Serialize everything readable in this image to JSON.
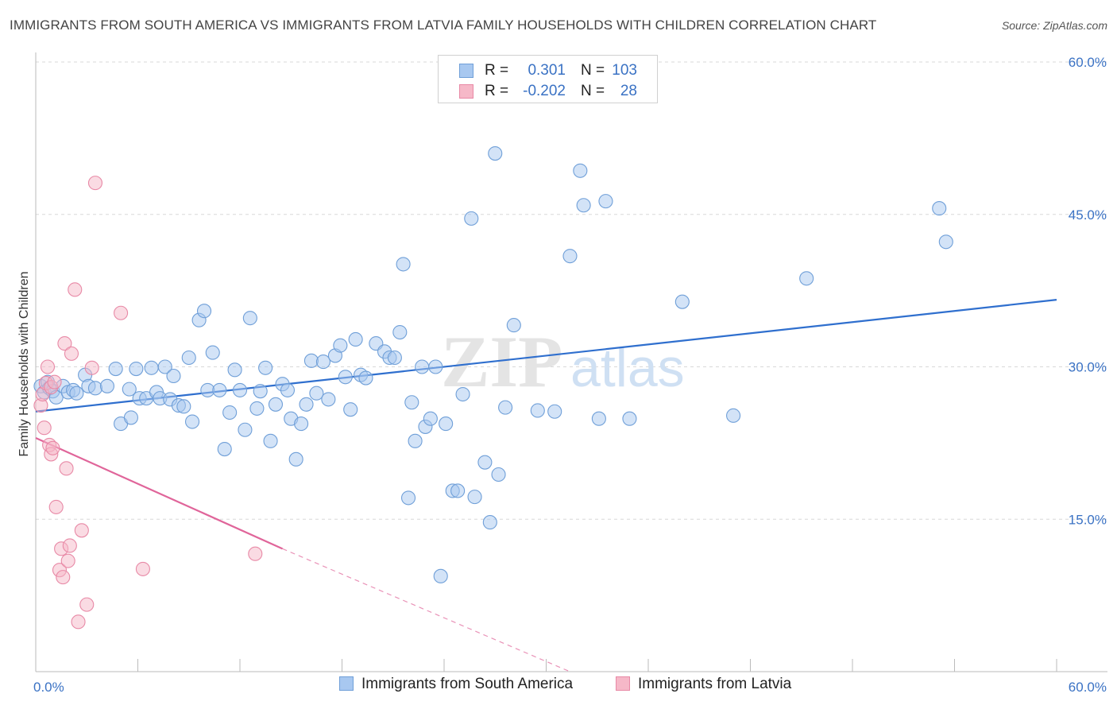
{
  "title": "IMMIGRANTS FROM SOUTH AMERICA VS IMMIGRANTS FROM LATVIA FAMILY HOUSEHOLDS WITH CHILDREN CORRELATION CHART",
  "source": "Source: ZipAtlas.com",
  "watermark": {
    "zip": "ZIP",
    "atlas": "atlas"
  },
  "legend": {
    "rows": [
      {
        "r_label": "R =",
        "r_value": "0.301",
        "n_label": "N =",
        "n_value": "103"
      },
      {
        "r_label": "R =",
        "r_value": "-0.202",
        "n_label": "N =",
        "n_value": "28"
      }
    ]
  },
  "colors": {
    "blue_fill": "#a8c8f0",
    "blue_stroke": "#6f9fd8",
    "blue_line": "#2f6fce",
    "pink_fill": "#f6b8c8",
    "pink_stroke": "#e889a6",
    "pink_line": "#e0659a",
    "tick_text": "#3a72c4",
    "grid": "#d8d8d8"
  },
  "chart_data": {
    "type": "scatter",
    "title": "IMMIGRANTS FROM SOUTH AMERICA VS IMMIGRANTS FROM LATVIA FAMILY HOUSEHOLDS WITH CHILDREN CORRELATION CHART",
    "xlabel": "",
    "ylabel": "Family Households with Children",
    "xlim": [
      0,
      60
    ],
    "ylim": [
      0,
      60
    ],
    "x_tick_labels": [
      "0.0%",
      "60.0%"
    ],
    "y_ticks": [
      15,
      30,
      45,
      60
    ],
    "y_tick_labels": [
      "15.0%",
      "30.0%",
      "45.0%",
      "60.0%"
    ],
    "grid": true,
    "legend_position": "top-center",
    "series": [
      {
        "name": "Immigrants from South America",
        "color": "#a8c8f0",
        "trend": {
          "x": [
            0,
            60
          ],
          "y": [
            25.6,
            36.6
          ]
        },
        "points": [
          [
            0.3,
            28.1
          ],
          [
            0.5,
            27.5
          ],
          [
            0.7,
            28.5
          ],
          [
            0.8,
            27.9
          ],
          [
            1.0,
            27.6
          ],
          [
            1.2,
            27.0
          ],
          [
            1.6,
            28.1
          ],
          [
            1.9,
            27.5
          ],
          [
            2.2,
            27.7
          ],
          [
            2.4,
            27.4
          ],
          [
            2.9,
            29.2
          ],
          [
            3.1,
            28.1
          ],
          [
            3.5,
            27.9
          ],
          [
            4.2,
            28.1
          ],
          [
            4.7,
            29.8
          ],
          [
            5.0,
            24.4
          ],
          [
            5.5,
            27.8
          ],
          [
            5.6,
            25.0
          ],
          [
            5.9,
            29.8
          ],
          [
            6.1,
            26.9
          ],
          [
            6.5,
            26.9
          ],
          [
            6.8,
            29.9
          ],
          [
            7.1,
            27.5
          ],
          [
            7.3,
            26.9
          ],
          [
            7.6,
            30.0
          ],
          [
            7.9,
            26.8
          ],
          [
            8.1,
            29.1
          ],
          [
            8.4,
            26.2
          ],
          [
            8.7,
            26.1
          ],
          [
            9.0,
            30.9
          ],
          [
            9.2,
            24.6
          ],
          [
            9.6,
            34.6
          ],
          [
            9.9,
            35.5
          ],
          [
            10.1,
            27.7
          ],
          [
            10.4,
            31.4
          ],
          [
            10.8,
            27.7
          ],
          [
            11.1,
            21.9
          ],
          [
            11.4,
            25.5
          ],
          [
            11.7,
            29.7
          ],
          [
            12.0,
            27.7
          ],
          [
            12.3,
            23.8
          ],
          [
            12.6,
            34.8
          ],
          [
            13.0,
            25.9
          ],
          [
            13.2,
            27.6
          ],
          [
            13.5,
            29.9
          ],
          [
            13.8,
            22.7
          ],
          [
            14.1,
            26.3
          ],
          [
            14.5,
            28.3
          ],
          [
            14.8,
            27.7
          ],
          [
            15.0,
            24.9
          ],
          [
            15.3,
            20.9
          ],
          [
            15.6,
            24.4
          ],
          [
            15.9,
            26.3
          ],
          [
            16.2,
            30.6
          ],
          [
            16.5,
            27.4
          ],
          [
            16.9,
            30.5
          ],
          [
            17.2,
            26.8
          ],
          [
            17.6,
            31.1
          ],
          [
            17.9,
            32.1
          ],
          [
            18.2,
            29.0
          ],
          [
            18.5,
            25.8
          ],
          [
            18.8,
            32.7
          ],
          [
            19.1,
            29.2
          ],
          [
            19.4,
            28.9
          ],
          [
            20.0,
            32.3
          ],
          [
            20.5,
            31.5
          ],
          [
            20.8,
            30.9
          ],
          [
            21.1,
            30.9
          ],
          [
            21.4,
            33.4
          ],
          [
            21.6,
            40.1
          ],
          [
            21.9,
            17.1
          ],
          [
            22.1,
            26.5
          ],
          [
            22.3,
            22.7
          ],
          [
            22.7,
            30.0
          ],
          [
            22.9,
            24.1
          ],
          [
            23.2,
            24.9
          ],
          [
            23.5,
            30.0
          ],
          [
            23.8,
            9.4
          ],
          [
            24.1,
            24.4
          ],
          [
            24.5,
            17.8
          ],
          [
            24.8,
            17.8
          ],
          [
            25.1,
            27.3
          ],
          [
            25.6,
            44.6
          ],
          [
            25.8,
            17.2
          ],
          [
            26.4,
            20.6
          ],
          [
            26.7,
            14.7
          ],
          [
            27.0,
            51.0
          ],
          [
            27.2,
            19.4
          ],
          [
            27.6,
            26.0
          ],
          [
            28.1,
            34.1
          ],
          [
            29.5,
            25.7
          ],
          [
            31.4,
            40.9
          ],
          [
            32.0,
            49.3
          ],
          [
            32.2,
            45.9
          ],
          [
            33.1,
            24.9
          ],
          [
            33.5,
            46.3
          ],
          [
            38.0,
            36.4
          ],
          [
            41.0,
            25.2
          ],
          [
            45.3,
            38.7
          ],
          [
            53.1,
            45.6
          ],
          [
            53.5,
            42.3
          ],
          [
            34.9,
            24.9
          ],
          [
            30.5,
            25.6
          ]
        ]
      },
      {
        "name": "Immigrants from Latvia",
        "color": "#f6b8c8",
        "trend": {
          "x": [
            0,
            14.5
          ],
          "y": [
            23.0,
            12.1
          ]
        },
        "trend_extension": {
          "x": [
            14.5,
            31.4
          ],
          "y": [
            12.1,
            0.0
          ]
        },
        "points": [
          [
            0.3,
            26.2
          ],
          [
            0.4,
            27.3
          ],
          [
            0.5,
            24.0
          ],
          [
            0.6,
            28.4
          ],
          [
            0.7,
            30.0
          ],
          [
            0.8,
            22.3
          ],
          [
            0.9,
            21.4
          ],
          [
            1.0,
            22.0
          ],
          [
            1.2,
            16.2
          ],
          [
            1.4,
            10.0
          ],
          [
            1.5,
            12.1
          ],
          [
            1.6,
            9.3
          ],
          [
            1.7,
            32.3
          ],
          [
            1.8,
            20.0
          ],
          [
            1.9,
            10.9
          ],
          [
            2.0,
            12.4
          ],
          [
            2.1,
            31.3
          ],
          [
            2.3,
            37.6
          ],
          [
            2.5,
            4.9
          ],
          [
            2.7,
            13.9
          ],
          [
            3.0,
            6.6
          ],
          [
            3.5,
            48.1
          ],
          [
            3.3,
            29.9
          ],
          [
            5.0,
            35.3
          ],
          [
            6.3,
            10.1
          ],
          [
            12.9,
            11.6
          ],
          [
            0.9,
            28.0
          ],
          [
            1.1,
            28.5
          ]
        ]
      }
    ]
  }
}
